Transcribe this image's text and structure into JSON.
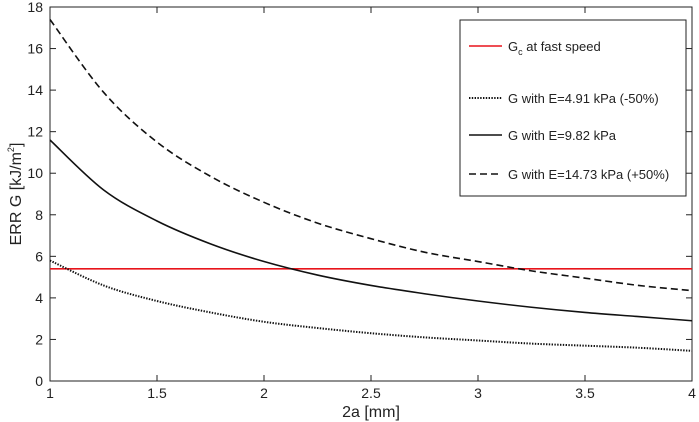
{
  "chart_data": {
    "type": "line",
    "title": "",
    "xlabel": "2a [mm]",
    "ylabel_main": "ERR G [kJ/m",
    "ylabel_sup": "2",
    "ylabel_end": "]",
    "xlim": [
      1,
      4
    ],
    "ylim": [
      0,
      18
    ],
    "xticks": [
      "1",
      "1.5",
      "2",
      "2.5",
      "3",
      "3.5",
      "4"
    ],
    "yticks": [
      "0",
      "2",
      "4",
      "6",
      "8",
      "10",
      "12",
      "14",
      "16",
      "18"
    ],
    "grid": false,
    "legend_position": "top-right",
    "x": [
      1.0,
      1.25,
      1.5,
      1.75,
      2.0,
      2.25,
      2.5,
      2.75,
      3.0,
      3.25,
      3.5,
      3.75,
      4.0
    ],
    "series": [
      {
        "name": "G_c at fast speed",
        "legend_main": "G",
        "legend_sub": "c",
        "legend_rest": " at fast speed",
        "color": "#e8141b",
        "style": "solid",
        "values": [
          5.4,
          5.4,
          5.4,
          5.4,
          5.4,
          5.4,
          5.4,
          5.4,
          5.4,
          5.4,
          5.4,
          5.4,
          5.4
        ]
      },
      {
        "name": "G with E=4.91 kPa (-50%)",
        "legend_main": "G with E=4.91 kPa (-50%)",
        "color": "#111111",
        "style": "dotted",
        "values": [
          5.8,
          4.6,
          3.85,
          3.3,
          2.85,
          2.55,
          2.3,
          2.1,
          1.95,
          1.8,
          1.7,
          1.6,
          1.45
        ]
      },
      {
        "name": "G with E=9.82 kPa",
        "legend_main": "G with E=9.82 kPa",
        "color": "#111111",
        "style": "solid",
        "values": [
          11.6,
          9.2,
          7.7,
          6.6,
          5.75,
          5.1,
          4.6,
          4.2,
          3.85,
          3.55,
          3.3,
          3.1,
          2.9
        ]
      },
      {
        "name": "G with E=14.73 kPa (+50%)",
        "legend_main": "G with E=14.73 kPa (+50%)",
        "color": "#111111",
        "style": "dashed",
        "values": [
          17.4,
          13.9,
          11.5,
          9.85,
          8.6,
          7.6,
          6.85,
          6.2,
          5.75,
          5.3,
          4.95,
          4.6,
          4.35
        ]
      }
    ]
  }
}
